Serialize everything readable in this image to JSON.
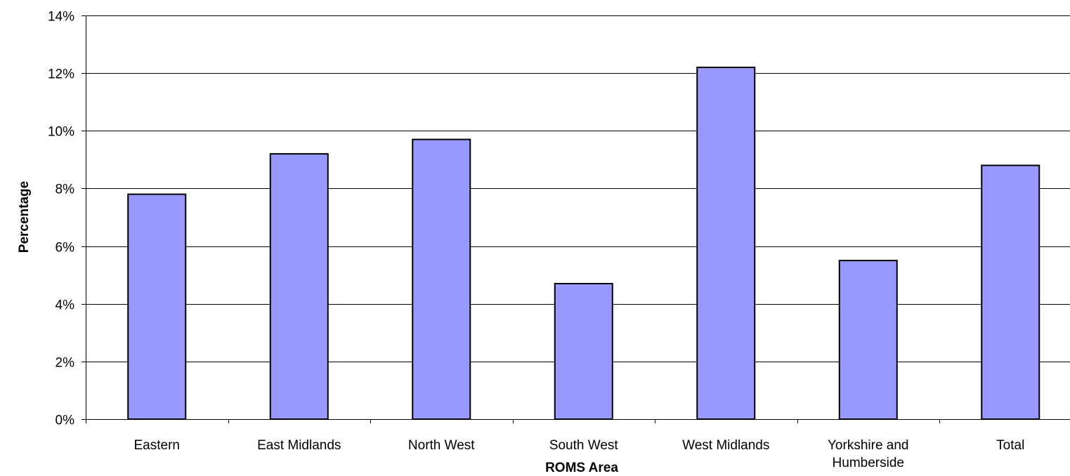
{
  "chart_data": {
    "type": "bar",
    "categories": [
      "Eastern",
      "East Midlands",
      "North West",
      "South West",
      "West Midlands",
      "Yorkshire and Humberside",
      "Total"
    ],
    "category_lines": [
      [
        "Eastern"
      ],
      [
        "East Midlands"
      ],
      [
        "North West"
      ],
      [
        "South West"
      ],
      [
        "West Midlands"
      ],
      [
        "Yorkshire and",
        "Humberside"
      ],
      [
        "Total"
      ]
    ],
    "values": [
      7.8,
      9.2,
      9.7,
      4.7,
      12.2,
      5.5,
      8.8
    ],
    "xlabel": "ROMS Area",
    "ylabel": "Percentage",
    "ylim": [
      0,
      14
    ],
    "yticks": [
      0,
      2,
      4,
      6,
      8,
      10,
      12,
      14
    ],
    "ytick_labels": [
      "0%",
      "2%",
      "4%",
      "6%",
      "8%",
      "10%",
      "12%",
      "14%"
    ],
    "grid": true,
    "legend": "none",
    "colors": {
      "bar_fill": "#9999ff",
      "bar_stroke": "#000000"
    }
  }
}
